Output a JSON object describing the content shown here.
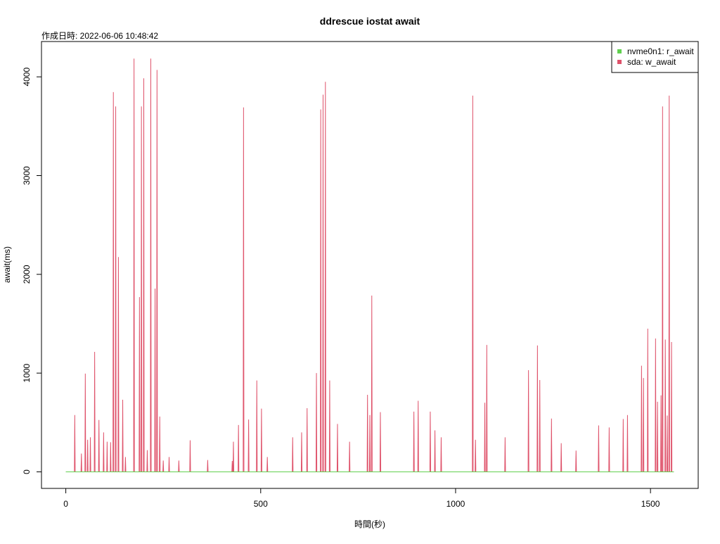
{
  "chart_data": {
    "type": "line",
    "title": "ddrescue iostat await",
    "subtitle": "作成日時: 2022-06-06 10:48:42",
    "xlabel": "時間(秒)",
    "ylabel": "await(ms)",
    "xlim": [
      -62.4,
      1622.4
    ],
    "ylim": [
      -167.6,
      4357.6
    ],
    "xticks": [
      0,
      500,
      1000,
      1500
    ],
    "yticks": [
      0,
      1000,
      2000,
      3000,
      4000
    ],
    "legend": "top-right",
    "x": [
      0,
      22,
      23,
      24,
      39,
      40,
      41,
      49,
      50,
      51,
      55,
      56,
      57,
      62,
      63,
      64,
      73,
      74,
      75,
      84,
      85,
      86,
      96,
      97,
      98,
      105,
      106,
      107,
      114,
      115,
      116,
      121,
      122,
      123,
      127,
      128,
      129,
      134,
      135,
      136,
      145,
      146,
      147,
      152,
      153,
      154,
      174,
      175,
      176,
      188,
      189,
      190,
      193,
      194,
      195,
      199,
      200,
      201,
      208,
      209,
      210,
      217,
      218,
      219,
      228,
      229,
      230,
      233,
      234,
      235,
      240,
      241,
      242,
      249,
      250,
      251,
      264,
      265,
      266,
      289,
      290,
      291,
      318,
      319,
      320,
      363,
      364,
      365,
      426,
      427,
      428,
      429,
      430,
      431,
      442,
      443,
      444,
      455,
      456,
      457,
      468,
      469,
      470,
      489,
      490,
      491,
      501,
      502,
      503,
      516,
      517,
      518,
      581,
      582,
      583,
      604,
      605,
      606,
      618,
      619,
      620,
      642,
      643,
      644,
      653,
      654,
      655,
      659,
      660,
      661,
      665,
      666,
      667,
      676,
      677,
      678,
      696,
      697,
      698,
      727,
      728,
      729,
      773,
      774,
      775,
      779,
      780,
      781,
      784,
      785,
      786,
      806,
      807,
      808,
      892,
      893,
      894,
      903,
      904,
      905,
      934,
      935,
      936,
      946,
      947,
      948,
      962,
      963,
      964,
      1043,
      1044,
      1045,
      1050,
      1051,
      1052,
      1074,
      1075,
      1076,
      1079,
      1080,
      1081,
      1126,
      1127,
      1128,
      1186,
      1187,
      1188,
      1209,
      1210,
      1211,
      1215,
      1216,
      1217,
      1245,
      1246,
      1247,
      1270,
      1271,
      1272,
      1308,
      1309,
      1310,
      1366,
      1367,
      1368,
      1393,
      1394,
      1395,
      1429,
      1430,
      1431,
      1440,
      1441,
      1442,
      1476,
      1477,
      1478,
      1481,
      1482,
      1483,
      1492,
      1493,
      1494,
      1512,
      1513,
      1514,
      1517,
      1518,
      1519,
      1526,
      1527,
      1528,
      1530,
      1531,
      1532,
      1537,
      1538,
      1539,
      1542,
      1543,
      1544,
      1547,
      1548,
      1549,
      1553,
      1554,
      1555,
      1560
    ],
    "series": [
      {
        "name": "nvme0n1: r_await",
        "color": "#61D04F",
        "x": [
          0,
          1560
        ],
        "values": [
          0,
          0
        ]
      },
      {
        "name": "sda: w_await",
        "color": "#DF536B",
        "values": [
          0,
          0,
          575,
          0,
          0,
          185,
          0,
          0,
          995,
          0,
          0,
          325,
          0,
          0,
          350,
          0,
          0,
          1215,
          0,
          0,
          525,
          0,
          0,
          400,
          0,
          0,
          305,
          0,
          0,
          300,
          0,
          0,
          3845,
          0,
          0,
          3700,
          0,
          0,
          2175,
          0,
          0,
          730,
          0,
          0,
          150,
          0,
          0,
          4185,
          0,
          0,
          1770,
          0,
          0,
          3700,
          0,
          0,
          3985,
          0,
          0,
          220,
          0,
          0,
          4185,
          0,
          0,
          1855,
          0,
          0,
          4070,
          0,
          0,
          560,
          0,
          0,
          115,
          0,
          0,
          150,
          0,
          0,
          115,
          0,
          0,
          320,
          0,
          0,
          120,
          0,
          0,
          110,
          0,
          0,
          305,
          0,
          0,
          475,
          0,
          0,
          3690,
          0,
          0,
          530,
          0,
          0,
          925,
          0,
          0,
          640,
          0,
          0,
          150,
          0,
          0,
          350,
          0,
          0,
          400,
          0,
          0,
          645,
          0,
          0,
          1000,
          0,
          0,
          3670,
          0,
          0,
          3820,
          0,
          0,
          3950,
          0,
          0,
          925,
          0,
          0,
          485,
          0,
          0,
          305,
          0,
          0,
          780,
          0,
          0,
          575,
          0,
          0,
          1785,
          0,
          0,
          605,
          0,
          0,
          610,
          0,
          0,
          720,
          0,
          0,
          610,
          0,
          0,
          420,
          0,
          0,
          350,
          0,
          0,
          3810,
          0,
          0,
          325,
          0,
          0,
          700,
          0,
          0,
          1285,
          0,
          0,
          350,
          0,
          0,
          1030,
          0,
          0,
          1280,
          0,
          0,
          930,
          0,
          0,
          540,
          0,
          0,
          290,
          0,
          0,
          215,
          0,
          0,
          470,
          0,
          0,
          450,
          0,
          0,
          535,
          0,
          0,
          575,
          0,
          0,
          1075,
          0,
          0,
          950,
          0,
          0,
          1450,
          0,
          0,
          1350,
          0,
          0,
          710,
          0,
          0,
          775,
          0,
          0,
          3700,
          0,
          0,
          1340,
          0,
          0,
          570,
          0,
          0,
          3810,
          0,
          0,
          1315,
          0,
          0
        ]
      }
    ]
  }
}
